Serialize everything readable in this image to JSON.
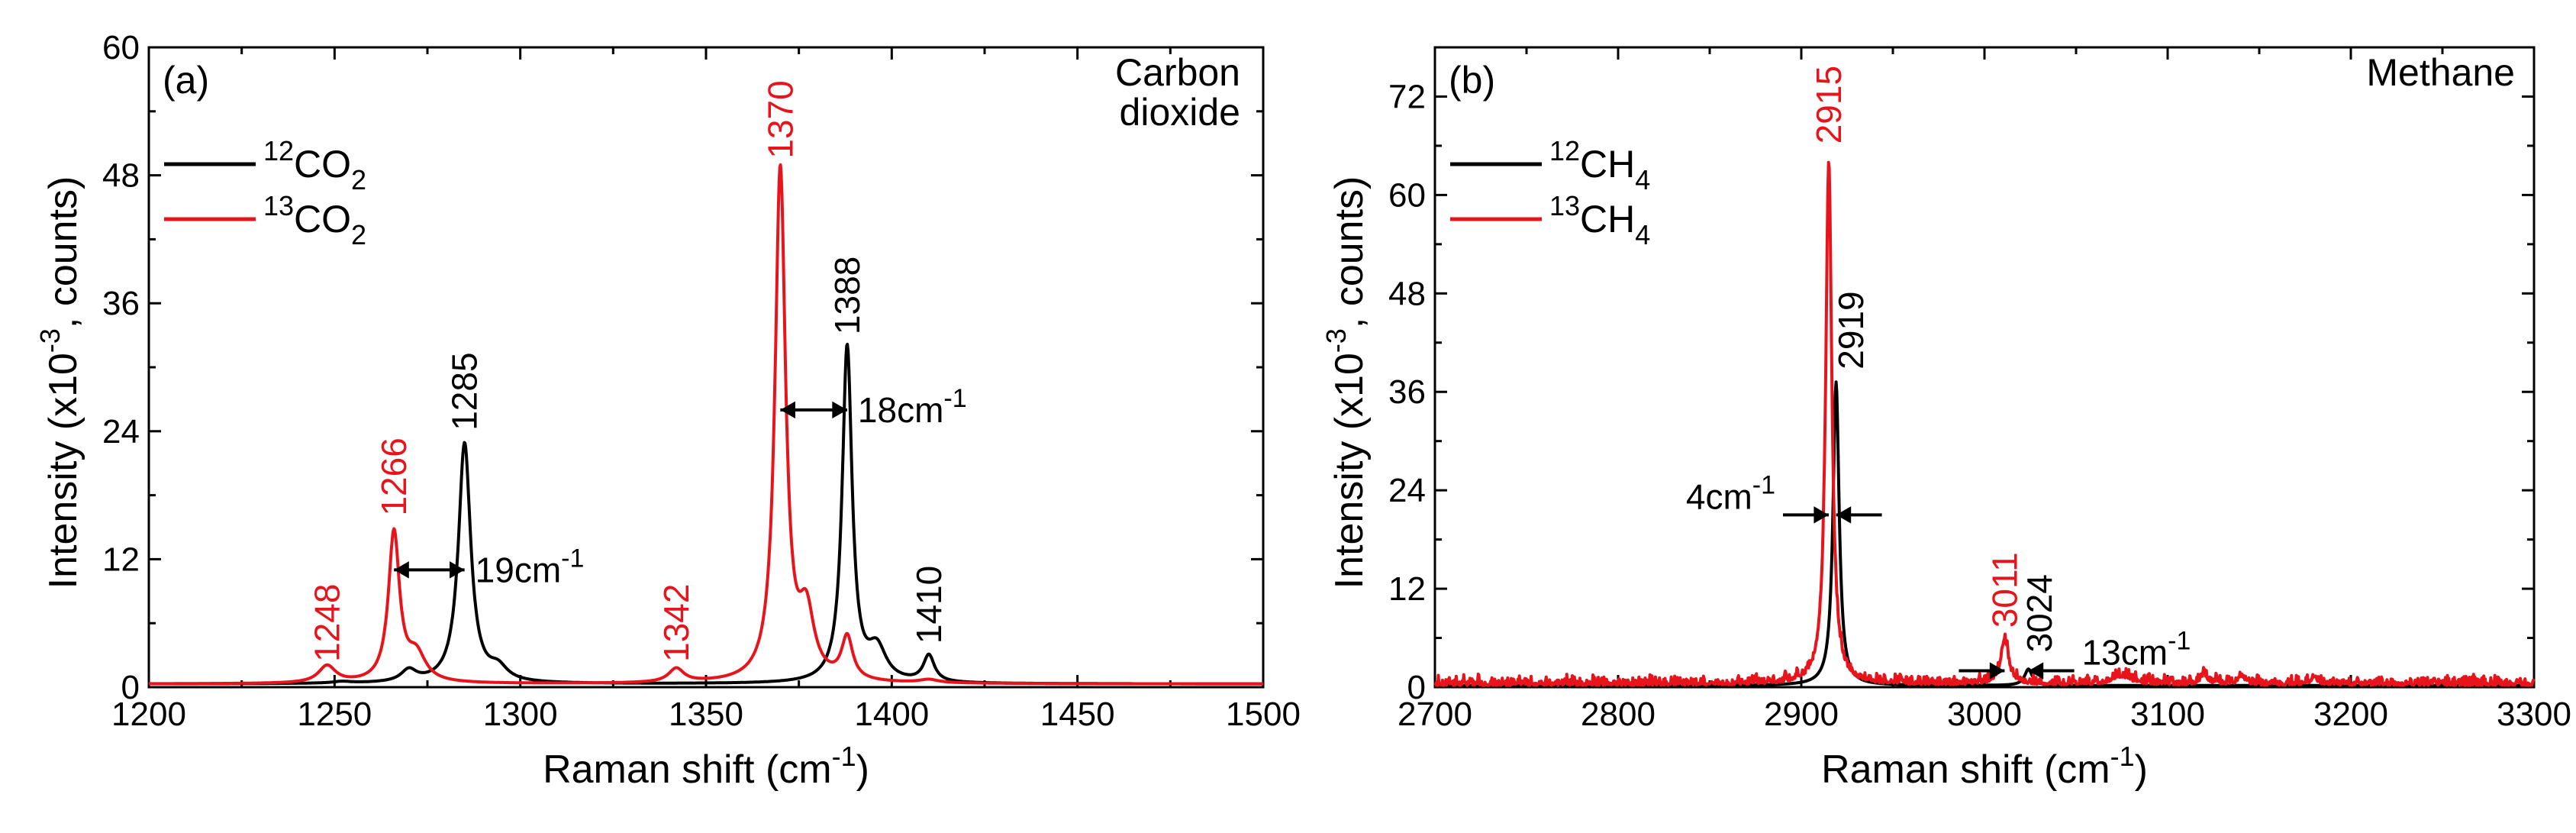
{
  "chart_data": [
    {
      "panel_label": "(a)",
      "type": "line",
      "title_lines": [
        "Carbon",
        "dioxide"
      ],
      "xlabel": "Raman shift (cm",
      "xlabel_sup": "-1",
      "xlabel_close": ")",
      "ylabel": "Intensity (x10",
      "ylabel_sup": "-3",
      "ylabel_tail": ", counts)",
      "xlim": [
        1200,
        1500
      ],
      "ylim": [
        0,
        60
      ],
      "xticks": [
        1200,
        1250,
        1300,
        1350,
        1400,
        1450,
        1500
      ],
      "yticks": [
        0,
        12,
        24,
        36,
        48,
        60
      ],
      "legend": [
        {
          "pre": "12",
          "main": "CO",
          "sub": "2",
          "color": "#000000"
        },
        {
          "pre": "13",
          "main": "CO",
          "sub": "2",
          "color": "#e8141c"
        }
      ],
      "series": [
        {
          "name": "12CO2",
          "color": "#000000",
          "peaks": [
            [
              1252,
              0.15,
              3
            ],
            [
              1270,
              1.1,
              2.5
            ],
            [
              1285,
              22.5,
              2.0
            ],
            [
              1294,
              1.2,
              3
            ],
            [
              1388,
              31.5,
              1.6
            ],
            [
              1396,
              3.0,
              3
            ],
            [
              1410,
              2.5,
              1.8
            ]
          ],
          "baseline": 0.3
        },
        {
          "name": "13CO2",
          "color": "#e8141c",
          "peaks": [
            [
              1248,
              1.6,
              2.8
            ],
            [
              1266,
              14.0,
              1.8
            ],
            [
              1272,
              2.5,
              3
            ],
            [
              1342,
              1.3,
              2.5
            ],
            [
              1370,
              48.0,
              1.7
            ],
            [
              1377,
              6.0,
              2.5
            ],
            [
              1388,
              4.0,
              1.8
            ],
            [
              1410,
              0.3,
              3
            ]
          ],
          "baseline": 0.3
        }
      ],
      "peak_labels": [
        {
          "text": "1248",
          "x": 1248,
          "y": 1.8,
          "color": "#e8141c",
          "rotated": true
        },
        {
          "text": "1266",
          "x": 1266,
          "y": 15.5,
          "color": "#e8141c",
          "rotated": true
        },
        {
          "text": "1285",
          "x": 1285,
          "y": 23.5,
          "color": "#000000",
          "rotated": true
        },
        {
          "text": "1342",
          "x": 1342,
          "y": 1.8,
          "color": "#e8141c",
          "rotated": true
        },
        {
          "text": "1370",
          "x": 1370,
          "y": 49.0,
          "color": "#e8141c",
          "rotated": true
        },
        {
          "text": "1388",
          "x": 1388,
          "y": 32.5,
          "color": "#000000",
          "rotated": true
        },
        {
          "text": "1410",
          "x": 1410,
          "y": 3.5,
          "color": "#000000",
          "rotated": true
        }
      ],
      "shift_annotations": [
        {
          "text": "19cm",
          "sup": "-1",
          "x1": 1266,
          "x2": 1285,
          "y": 11.0
        },
        {
          "text": "18cm",
          "sup": "-1",
          "x1": 1370,
          "x2": 1388,
          "y": 26.0
        }
      ]
    },
    {
      "panel_label": "(b)",
      "type": "line",
      "title_lines": [
        "Methane"
      ],
      "xlabel": "Raman shift (cm",
      "xlabel_sup": "-1",
      "xlabel_close": ")",
      "ylabel": "Intensity (x10",
      "ylabel_sup": "-3",
      "ylabel_tail": ", counts)",
      "xlim": [
        2700,
        3300
      ],
      "ylim": [
        0,
        78
      ],
      "xticks": [
        2700,
        2800,
        2900,
        3000,
        3100,
        3200,
        3300
      ],
      "yticks": [
        0,
        12,
        24,
        36,
        48,
        60,
        72
      ],
      "legend": [
        {
          "pre": "12",
          "main": "CH",
          "sub": "4",
          "color": "#000000"
        },
        {
          "pre": "13",
          "main": "CH",
          "sub": "4",
          "color": "#e8141c"
        }
      ],
      "series": [
        {
          "name": "12CH4",
          "color": "#000000",
          "peaks": [
            [
              2919,
              37.0,
              2.0
            ],
            [
              3024,
              2.0,
              2.5
            ]
          ],
          "baseline": 0.2
        },
        {
          "name": "13CH4",
          "color": "#e8141c",
          "peaks": [
            [
              2915,
              64.0,
              2.0
            ],
            [
              3011,
              5.5,
              2.5
            ],
            [
              3075,
              1.0,
              6
            ],
            [
              3120,
              1.2,
              2
            ],
            [
              3140,
              1.0,
              2
            ],
            [
              3180,
              0.9,
              2
            ]
          ],
          "baseline": 0.2,
          "noise": 0.9
        }
      ],
      "peak_labels": [
        {
          "text": "2915",
          "x": 2915,
          "y": 65.5,
          "color": "#e8141c",
          "rotated": true
        },
        {
          "text": "2919",
          "x": 2927,
          "y": 38.0,
          "color": "#000000",
          "rotated": true
        },
        {
          "text": "3011",
          "x": 3011,
          "y": 6.5,
          "color": "#e8141c",
          "rotated": true
        },
        {
          "text": "3024",
          "x": 3030,
          "y": 3.5,
          "color": "#000000",
          "rotated": true
        }
      ],
      "shift_annotations": [
        {
          "text": "4cm",
          "sup": "-1",
          "x1": 2915,
          "x2": 2919,
          "y": 21.0,
          "style": "outside-left"
        },
        {
          "text": "13cm",
          "sup": "-1",
          "x1": 3011,
          "x2": 3024,
          "y": 2.0,
          "style": "outside-right"
        }
      ]
    }
  ]
}
